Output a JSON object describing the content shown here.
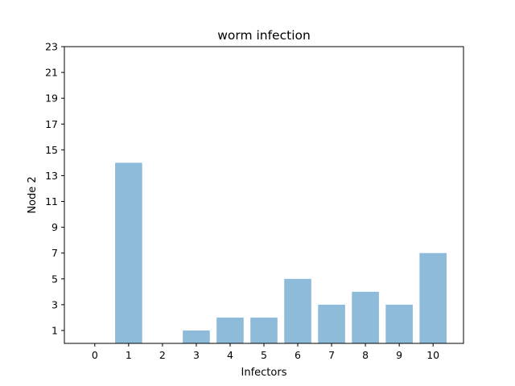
{
  "chart_data": {
    "type": "bar",
    "title": "worm infection",
    "xlabel": "Infectors",
    "ylabel": "Node 2",
    "categories": [
      "0",
      "1",
      "2",
      "3",
      "4",
      "5",
      "6",
      "7",
      "8",
      "9",
      "10"
    ],
    "values": [
      0,
      14,
      0,
      1,
      2,
      2,
      5,
      3,
      4,
      3,
      7
    ],
    "ylim": [
      0,
      23
    ],
    "yticks": [
      1,
      3,
      5,
      7,
      9,
      11,
      13,
      15,
      17,
      19,
      21,
      23
    ],
    "bar_color": "#8fbbda",
    "grid": false,
    "legend": "none"
  }
}
